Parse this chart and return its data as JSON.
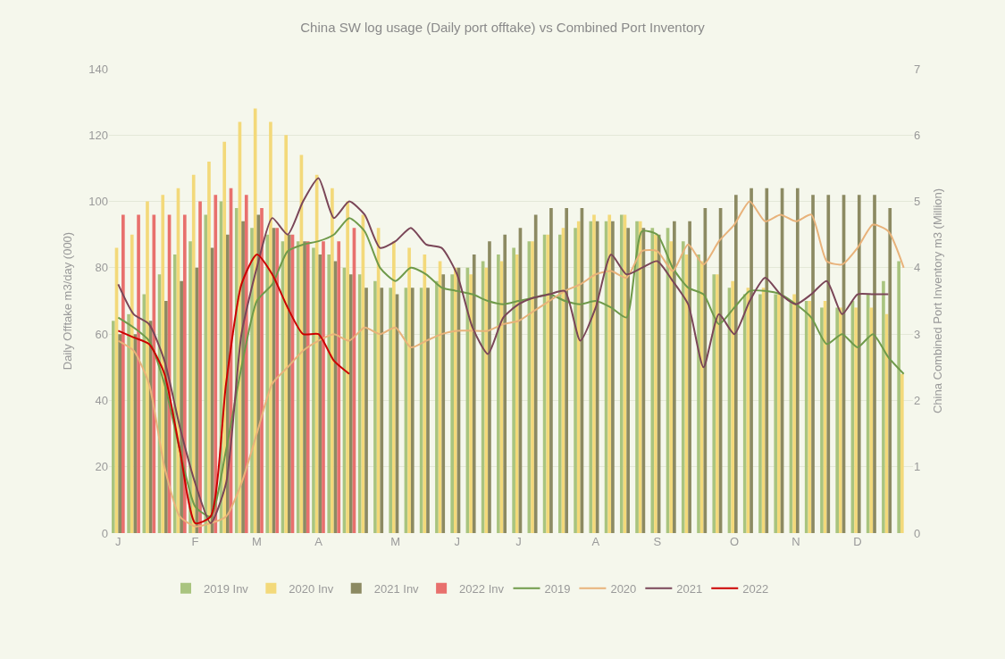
{
  "chart_data": {
    "type": "bar",
    "title": "China SW log usage (Daily port offtake) vs Combined Port Inventory",
    "ylabel": "Daily Offtake m3/day (000)",
    "y2label": "China Combined Port Inventory m3 (Million)",
    "categories": [
      "J",
      null,
      null,
      null,
      null,
      "F",
      null,
      null,
      null,
      "M",
      null,
      null,
      null,
      "A",
      null,
      null,
      null,
      null,
      "M",
      null,
      null,
      null,
      "J",
      null,
      null,
      null,
      "J",
      null,
      null,
      null,
      null,
      "A",
      null,
      null,
      null,
      "S",
      null,
      null,
      null,
      null,
      "O",
      null,
      null,
      null,
      "N",
      null,
      null,
      null,
      "D",
      null,
      null,
      null
    ],
    "ylim": [
      0,
      140
    ],
    "yticks": [
      0,
      20,
      40,
      60,
      80,
      100,
      120,
      140
    ],
    "y2lim": [
      0,
      7
    ],
    "y2ticks": [
      0,
      1,
      2,
      3,
      4,
      5,
      6,
      7
    ],
    "grid": "y",
    "legend": "bottom",
    "line_style": "solid",
    "series": [
      {
        "name": "2019 Inv",
        "axis": "y2",
        "color": "#a9c47f",
        "values": [
          3.2,
          3.3,
          3.6,
          3.9,
          4.2,
          4.4,
          4.8,
          5.0,
          4.9,
          4.6,
          4.5,
          4.4,
          4.4,
          4.3,
          4.2,
          4.0,
          3.9,
          3.8,
          3.7,
          3.7,
          3.7,
          3.8,
          3.9,
          4.0,
          4.1,
          4.2,
          4.3,
          4.4,
          4.5,
          4.5,
          4.6,
          4.7,
          4.7,
          4.8,
          4.7,
          4.6,
          4.6,
          4.4,
          4.2,
          3.9,
          3.7,
          3.6,
          3.6,
          3.6,
          3.5,
          3.5,
          3.4,
          3.4,
          3.5,
          3.6,
          3.8,
          4.1
        ]
      },
      {
        "name": "2020 Inv",
        "axis": "y2",
        "color": "#f3d97a",
        "values": [
          4.3,
          4.5,
          5.0,
          5.1,
          5.2,
          5.4,
          5.6,
          5.9,
          6.2,
          6.4,
          6.2,
          6.0,
          5.7,
          5.4,
          5.2,
          5.0,
          4.8,
          4.6,
          4.4,
          4.3,
          4.2,
          4.1,
          4.0,
          3.9,
          4.0,
          4.1,
          4.2,
          4.4,
          4.5,
          4.6,
          4.7,
          4.8,
          4.8,
          4.8,
          4.7,
          4.5,
          4.4,
          4.2,
          4.1,
          3.9,
          3.8,
          3.7,
          3.7,
          3.6,
          3.6,
          3.5,
          3.5,
          3.4,
          3.4,
          3.4,
          3.3,
          2.4
        ]
      },
      {
        "name": "2021 Inv",
        "axis": "y2",
        "color": "#8c8a62",
        "values": [
          3.0,
          3.0,
          3.2,
          3.5,
          3.8,
          4.0,
          4.3,
          4.5,
          4.7,
          4.8,
          4.6,
          4.5,
          4.4,
          4.2,
          4.1,
          3.9,
          3.7,
          3.7,
          3.6,
          3.7,
          3.7,
          3.9,
          4.0,
          4.2,
          4.4,
          4.5,
          4.6,
          4.8,
          4.9,
          4.9,
          4.9,
          4.7,
          4.7,
          4.6,
          4.6,
          4.5,
          4.7,
          4.7,
          4.9,
          4.9,
          5.1,
          5.2,
          5.2,
          5.2,
          5.2,
          5.1,
          5.1,
          5.1,
          5.1,
          5.1,
          4.9,
          null
        ]
      },
      {
        "name": "2022 Inv",
        "axis": "y2",
        "color": "#e8706d",
        "values": [
          4.8,
          4.8,
          4.8,
          4.8,
          4.8,
          5.0,
          5.1,
          5.2,
          5.1,
          4.9,
          4.6,
          4.5,
          4.4,
          4.4,
          4.4,
          4.6,
          null,
          null,
          null,
          null,
          null,
          null,
          null,
          null,
          null,
          null,
          null,
          null,
          null,
          null,
          null,
          null,
          null,
          null,
          null,
          null,
          null,
          null,
          null,
          null,
          null,
          null,
          null,
          null,
          null,
          null,
          null,
          null,
          null,
          null,
          null,
          null
        ]
      },
      {
        "name": "2019",
        "type": "line",
        "color": "#6f9a4a",
        "values": [
          65,
          62,
          58,
          45,
          25,
          8,
          5,
          25,
          50,
          70,
          75,
          85,
          87,
          88,
          90,
          95,
          91,
          80,
          76,
          80,
          78,
          74,
          73,
          72,
          70,
          69,
          70,
          71,
          72,
          70,
          69,
          70,
          68,
          65,
          91,
          90,
          80,
          74,
          72,
          63,
          68,
          73,
          73,
          72,
          69,
          65,
          57,
          60,
          56,
          60,
          53,
          48
        ]
      },
      {
        "name": "2020",
        "type": "line",
        "color": "#e8b27a",
        "values": [
          58,
          55,
          45,
          20,
          5,
          2,
          3,
          5,
          15,
          30,
          45,
          50,
          55,
          58,
          60,
          58,
          62,
          60,
          62,
          56,
          58,
          60,
          61,
          61,
          61,
          63,
          64,
          67,
          70,
          73,
          75,
          78,
          79,
          77,
          85,
          85,
          79,
          87,
          81,
          88,
          93,
          100,
          94,
          96,
          94,
          96,
          82,
          81,
          86,
          93,
          91,
          80
        ]
      },
      {
        "name": "2021",
        "type": "line",
        "color": "#7a4658",
        "values": [
          75,
          66,
          63,
          52,
          32,
          15,
          3,
          15,
          60,
          80,
          95,
          90,
          100,
          107,
          95,
          100,
          96,
          86,
          88,
          92,
          87,
          86,
          78,
          62,
          54,
          65,
          69,
          71,
          72,
          73,
          58,
          68,
          84,
          78,
          80,
          82,
          76,
          69,
          50,
          66,
          60,
          70,
          77,
          72,
          69,
          72,
          76,
          66,
          72,
          72,
          72,
          null
        ]
      },
      {
        "name": "2022",
        "type": "line",
        "color": "#cc0000",
        "values": [
          61,
          59,
          57,
          48,
          25,
          3,
          5,
          45,
          75,
          84,
          78,
          68,
          60,
          60,
          52,
          48,
          null,
          null,
          null,
          null,
          null,
          null,
          null,
          null,
          null,
          null,
          null,
          null,
          null,
          null,
          null,
          null,
          null,
          null,
          null,
          null,
          null,
          null,
          null,
          null,
          null,
          null,
          null,
          null,
          null,
          null,
          null,
          null,
          null,
          null,
          null,
          null
        ]
      }
    ]
  }
}
